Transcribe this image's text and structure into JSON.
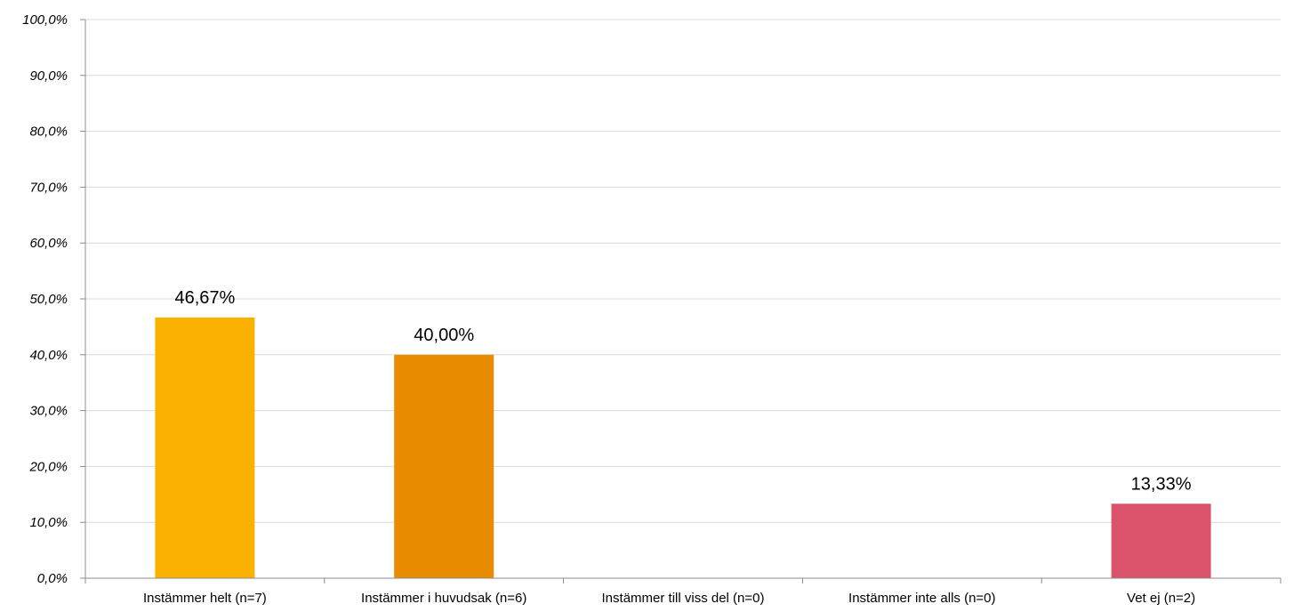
{
  "chart_data": {
    "type": "bar",
    "categories": [
      "Instämmer helt (n=7)",
      "Instämmer i huvudsak (n=6)",
      "Instämmer till viss del (n=0)",
      "Instämmer inte alls (n=0)",
      "Vet ej (n=2)"
    ],
    "values": [
      46.67,
      40.0,
      0,
      0,
      13.33
    ],
    "data_labels": [
      "46,67%",
      "40,00%",
      "",
      "",
      "13,33%"
    ],
    "colors": [
      "#FBB100",
      "#EA8C00",
      "#EA8C00",
      "#EA8C00",
      "#DB536A"
    ],
    "ylim": [
      0,
      100
    ],
    "yticks": [
      0,
      10,
      20,
      30,
      40,
      50,
      60,
      70,
      80,
      90,
      100
    ],
    "ytick_labels": [
      "0,0%",
      "10,0%",
      "20,0%",
      "30,0%",
      "40,0%",
      "50,0%",
      "60,0%",
      "70,0%",
      "80,0%",
      "90,0%",
      "100,0%"
    ],
    "grid": true,
    "legend": "none",
    "title": "",
    "xlabel": "",
    "ylabel": ""
  }
}
